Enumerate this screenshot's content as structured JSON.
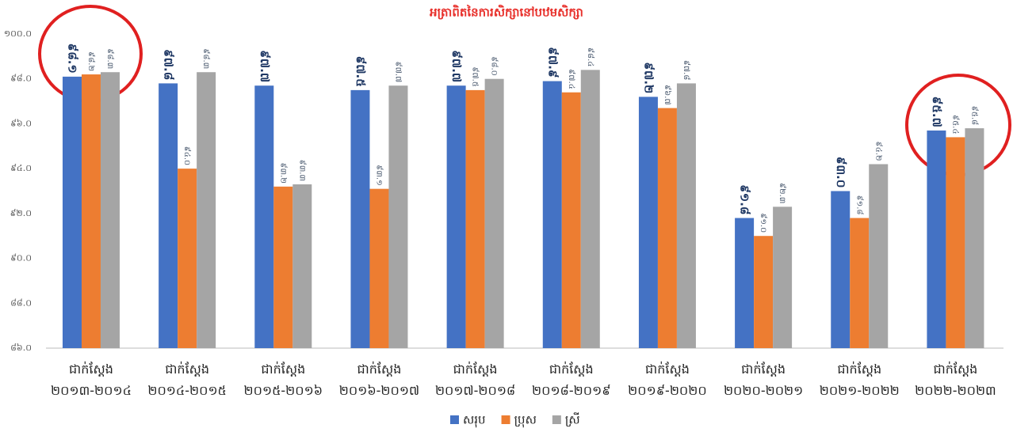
{
  "chart_data": {
    "type": "bar",
    "title": "អត្រាពិតនៃការសិក្សានៅបឋមសិក្សា",
    "categories": [
      "ជាក់ស្តែង ២០១៣-២០១៤",
      "ជាក់ស្តែង ២០១៤-២០១៥",
      "ជាក់ស្តែង ២០១៥-២០១៦",
      "ជាក់ស្តែង ២០១៦-២០១៧",
      "ជាក់ស្តែង ២០១៧-២០១៨",
      "ជាក់ស្តែង ២០១៨-២០១៩",
      "ជាក់ស្តែង ២០១៩-២០២០",
      "ជាក់ស្តែង ២០២០-២០២១",
      "ជាក់ស្តែង ២០២១-២០២២",
      "ជាក់ស្តែង ២០២២-២០២៣"
    ],
    "series": [
      {
        "name": "សរុប",
        "color": "#4472c4",
        "values": [
          98.1,
          97.8,
          97.7,
          97.5,
          97.7,
          97.9,
          97.2,
          91.8,
          93.0,
          95.7
        ],
        "value_labels": [
          "៩៨.១",
          "៩៧.៨",
          "៩៧.៧",
          "៩៧.៥",
          "៩៧.៧",
          "៩៧.៩",
          "៩៧.២",
          "៩១.៨",
          "៩៣.០",
          "៩៥.៧"
        ]
      },
      {
        "name": "ប្រុស",
        "color": "#ed7d31",
        "values": [
          98.2,
          94.0,
          93.2,
          93.1,
          97.5,
          97.4,
          96.7,
          91.0,
          91.8,
          95.4
        ],
        "value_labels": [
          "៩៨.២",
          "៩៤.០",
          "៩៣.២",
          "៩៣.១",
          "៩៧.៥",
          "៩៧.៤",
          "៩៦.៧",
          "៩១.០",
          "៩១.៨",
          "៩៥.៤"
        ]
      },
      {
        "name": "ស្រី",
        "color": "#a5a5a5",
        "values": [
          98.3,
          98.3,
          93.3,
          97.7,
          98.0,
          98.4,
          97.8,
          92.3,
          94.2,
          95.8
        ],
        "value_labels": [
          "៩៨.៣",
          "៩៨.៣",
          "៩៣.៣",
          "៩៧.៧",
          "៩៨.០",
          "៩៨.៤",
          "៩៧.៨",
          "៩២.៣",
          "៩៤.២",
          "៩៥.៨"
        ]
      }
    ],
    "ylim": [
      86,
      100
    ],
    "yticks": [
      {
        "value": 86,
        "label": "៨៦.០"
      },
      {
        "value": 88,
        "label": "៨៨.០"
      },
      {
        "value": 90,
        "label": "៩០.០"
      },
      {
        "value": 92,
        "label": "៩២.០"
      },
      {
        "value": 94,
        "label": "៩៤.០"
      },
      {
        "value": 96,
        "label": "៩៦.០"
      },
      {
        "value": 98,
        "label": "៩៨.០"
      },
      {
        "value": 100,
        "label": "១០០.០"
      }
    ],
    "grid": false,
    "legend": "bottom"
  }
}
